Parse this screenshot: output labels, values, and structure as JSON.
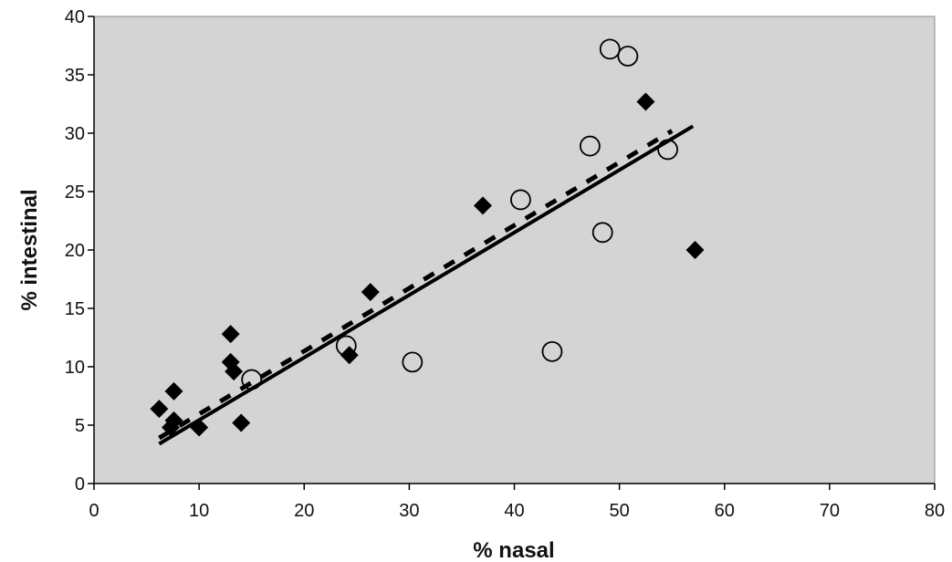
{
  "chart_data": {
    "type": "scatter",
    "title": "",
    "xlabel": "% nasal",
    "ylabel": "% intestinal",
    "xlim": [
      0,
      80
    ],
    "ylim": [
      0,
      40
    ],
    "xticks": [
      0,
      10,
      20,
      30,
      40,
      50,
      60,
      70,
      80
    ],
    "yticks": [
      0,
      5,
      10,
      15,
      20,
      25,
      30,
      35,
      40
    ],
    "grid": false,
    "plot_background": "#d4d4d4",
    "series": [
      {
        "marker": "filled-diamond",
        "color": "#000000",
        "points": [
          [
            6.2,
            6.4
          ],
          [
            7.3,
            4.8
          ],
          [
            7.6,
            5.4
          ],
          [
            7.6,
            7.9
          ],
          [
            10.0,
            4.8
          ],
          [
            13.0,
            12.8
          ],
          [
            13.0,
            10.4
          ],
          [
            13.3,
            9.6
          ],
          [
            14.0,
            5.2
          ],
          [
            24.3,
            11.0
          ],
          [
            26.3,
            16.4
          ],
          [
            37.0,
            23.8
          ],
          [
            52.5,
            32.7
          ],
          [
            57.2,
            20.0
          ]
        ]
      },
      {
        "marker": "open-circle",
        "color": "#000000",
        "points": [
          [
            15.0,
            8.9
          ],
          [
            24.0,
            11.8
          ],
          [
            30.3,
            10.4
          ],
          [
            40.6,
            24.3
          ],
          [
            43.6,
            11.3
          ],
          [
            47.2,
            28.9
          ],
          [
            48.4,
            21.5
          ],
          [
            49.1,
            37.2
          ],
          [
            50.8,
            36.6
          ],
          [
            54.6,
            28.6
          ]
        ]
      }
    ],
    "trendlines": [
      {
        "style": "solid",
        "from": [
          6.2,
          3.4
        ],
        "to": [
          57.0,
          30.6
        ]
      },
      {
        "style": "dashed",
        "from": [
          6.2,
          3.9
        ],
        "to": [
          55.0,
          30.2
        ]
      }
    ]
  }
}
